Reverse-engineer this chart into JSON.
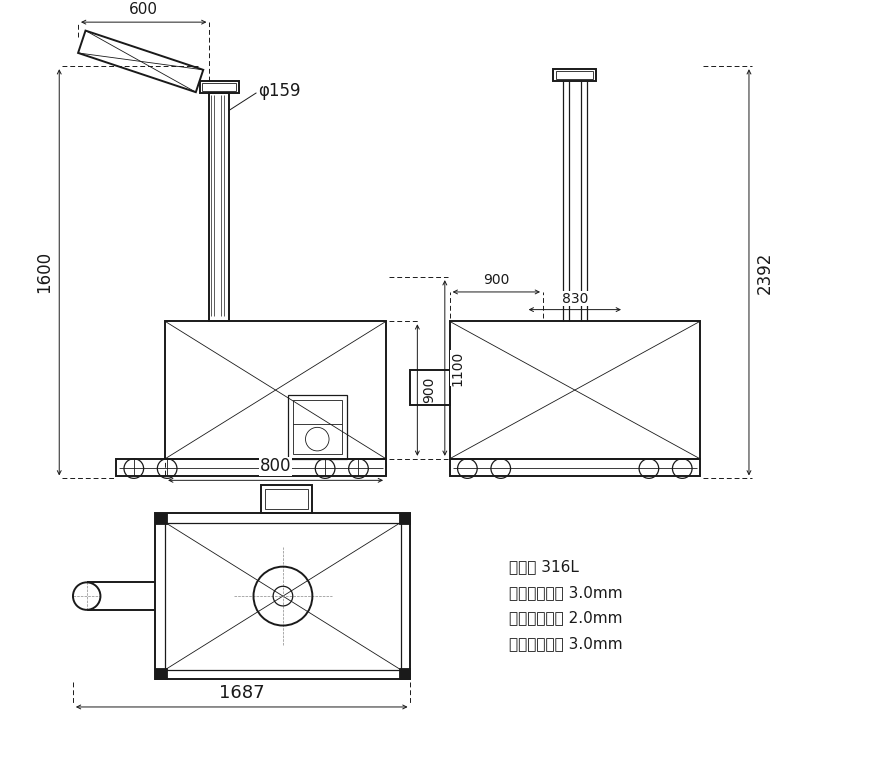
{
  "bg_color": "#ffffff",
  "line_color": "#1a1a1a",
  "spec_lines": [
    "材质： 316L",
    "螺旋管壁厕： 3.0mm",
    "储料仓板厕： 2.0mm",
    "螺旋叶片厕： 3.0mm"
  ],
  "dim_1600": "1600",
  "dim_600": "600",
  "dim_800": "800",
  "dim_phi159": "φ159",
  "dim_900a": "900",
  "dim_1100": "1100",
  "dim_900b": "900",
  "dim_830": "830",
  "dim_2392": "2392",
  "dim_1687": "1687"
}
